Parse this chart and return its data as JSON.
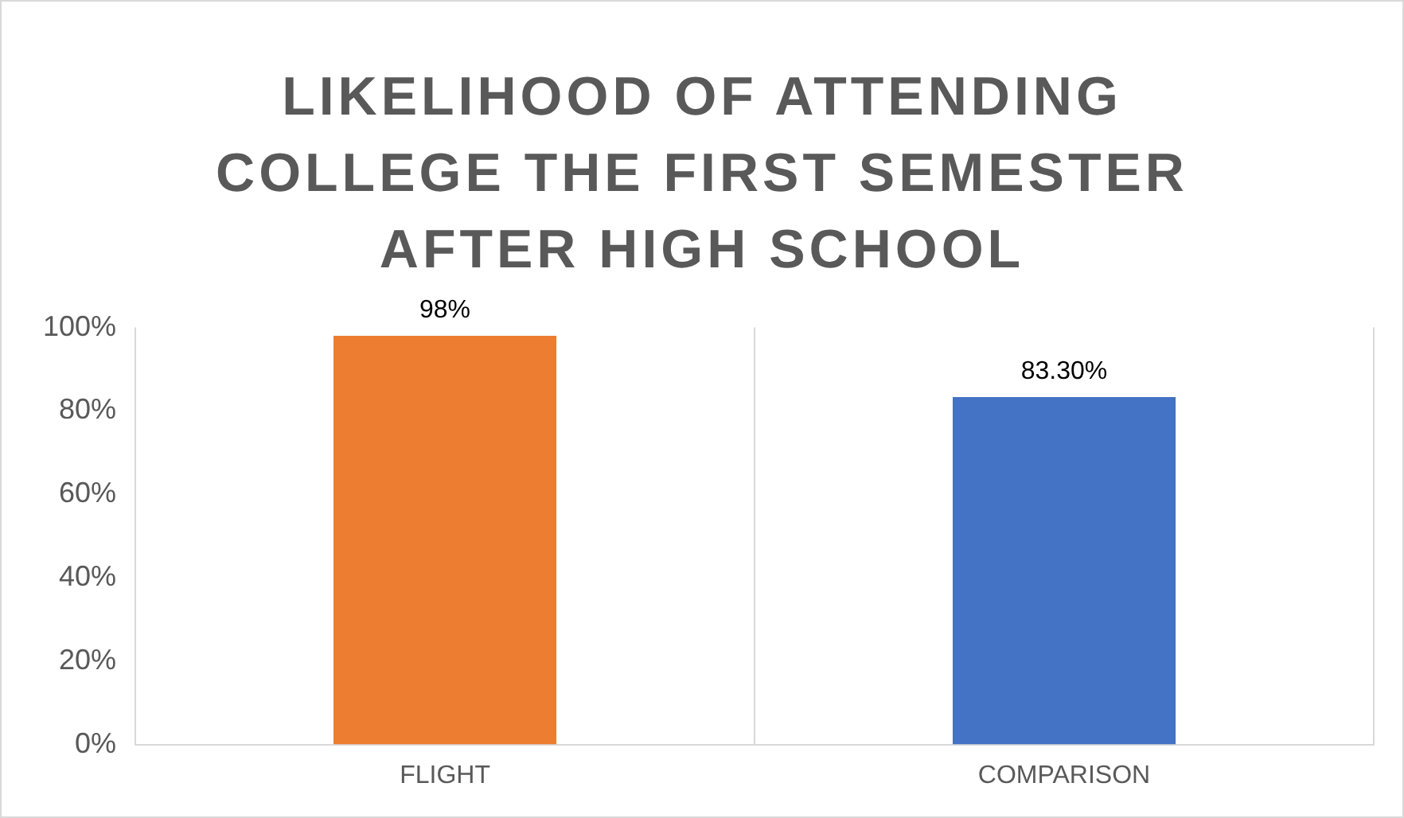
{
  "chart_data": {
    "type": "bar",
    "title": "LIKELIHOOD OF ATTENDING COLLEGE THE FIRST SEMESTER AFTER HIGH SCHOOL",
    "categories": [
      "FLIGHT",
      "COMPARISON"
    ],
    "values": [
      98,
      83.3
    ],
    "colors": [
      "#ed7d31",
      "#4472c4"
    ],
    "value_labels": [
      "98%",
      "83.30%"
    ],
    "ylim": [
      0,
      100
    ],
    "yticks": [
      {
        "value": 0,
        "label": "0%"
      },
      {
        "value": 20,
        "label": "20%"
      },
      {
        "value": 40,
        "label": "40%"
      },
      {
        "value": 60,
        "label": "60%"
      },
      {
        "value": 80,
        "label": "80%"
      },
      {
        "value": 100,
        "label": "100%"
      }
    ],
    "grid": "x",
    "legend": false
  }
}
